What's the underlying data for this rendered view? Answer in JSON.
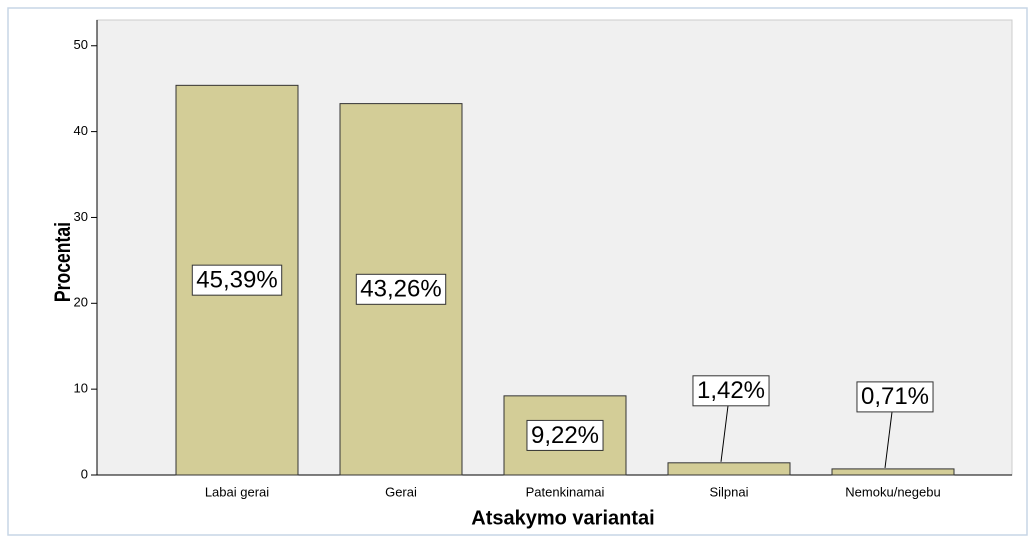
{
  "chart_data": {
    "type": "bar",
    "xlabel": "Atsakymo variantai",
    "ylabel": "Procentai",
    "categories": [
      "Labai gerai",
      "Gerai",
      "Patenkinamai",
      "Silpnai",
      "Nemoku/negebu"
    ],
    "values": [
      45.39,
      43.26,
      9.22,
      1.42,
      0.71
    ],
    "value_labels": [
      "45,39%",
      "43,26%",
      "9,22%",
      "1,42%",
      "0,71%"
    ],
    "color": "#d3cd97",
    "ylim": [
      0,
      53
    ],
    "yticks": [
      0,
      10,
      20,
      30,
      40,
      50
    ],
    "grid": false
  }
}
